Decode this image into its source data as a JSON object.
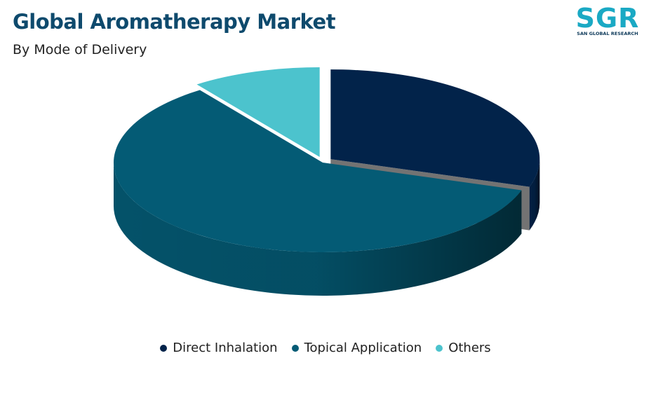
{
  "chart_data": {
    "type": "pie3d",
    "title": "Global Aromatherapy Market",
    "subtitle": "By Mode of Delivery",
    "categories": [
      "Direct Inhalation",
      "Topical Application",
      "Others"
    ],
    "values": [
      30,
      60,
      10
    ],
    "colors": [
      "#02234a",
      "#045b75",
      "#4cc3cd"
    ],
    "legend": "bottom"
  },
  "logo": {
    "text": "SGR",
    "caption": "SAN GLOBAL RESEARCH"
  }
}
